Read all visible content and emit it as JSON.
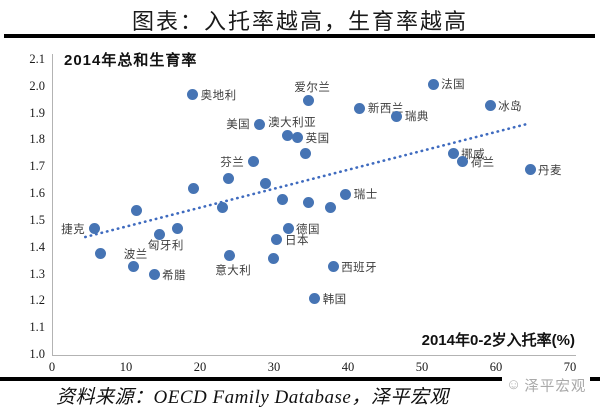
{
  "title": "图表：入托率越高，生育率越高",
  "footer": {
    "source": "资料来源：OECD Family Database，泽平宏观"
  },
  "watermark": {
    "icon": "smiley-logo-icon",
    "icon_char": "☺",
    "label": "泽平宏观"
  },
  "chart_data": {
    "type": "scatter",
    "title": "2014年总和生育率",
    "xlabel": "2014年0-2岁入托率(%)",
    "ylabel": "2014年总和生育率",
    "xlim": [
      0,
      70
    ],
    "ylim": [
      1.0,
      2.1
    ],
    "x_ticks": [
      0,
      10,
      20,
      30,
      40,
      50,
      60,
      70
    ],
    "y_ticks": [
      2.1,
      2.0,
      1.9,
      1.8,
      1.7,
      1.6,
      1.5,
      1.4,
      1.3,
      1.2,
      1.1,
      1.0
    ],
    "dot_color": "#4674b4",
    "trendline": {
      "style": "dotted",
      "color": "#3f6bbf",
      "x1": 4.5,
      "y1": 1.44,
      "x2": 64.0,
      "y2": 1.86
    },
    "points": [
      {
        "label": "捷克",
        "x": 5.7,
        "y": 1.47,
        "side": "left"
      },
      {
        "label": "",
        "x": 6.5,
        "y": 1.38,
        "side": "none"
      },
      {
        "label": "波兰",
        "x": 11.0,
        "y": 1.33,
        "side": "above"
      },
      {
        "label": "",
        "x": 11.4,
        "y": 1.54,
        "side": "none"
      },
      {
        "label": "希腊",
        "x": 13.8,
        "y": 1.3,
        "side": "right"
      },
      {
        "label": "匈牙利",
        "x": 14.5,
        "y": 1.45,
        "side": "below-right"
      },
      {
        "label": "",
        "x": 16.9,
        "y": 1.47,
        "side": "none"
      },
      {
        "label": "",
        "x": 19.1,
        "y": 1.62,
        "side": "none"
      },
      {
        "label": "奥地利",
        "x": 19.0,
        "y": 1.97,
        "side": "right"
      },
      {
        "label": "",
        "x": 23.1,
        "y": 1.55,
        "side": "none"
      },
      {
        "label": "",
        "x": 23.9,
        "y": 1.66,
        "side": "none"
      },
      {
        "label": "意大利",
        "x": 24.0,
        "y": 1.37,
        "side": "below"
      },
      {
        "label": "芬兰",
        "x": 27.2,
        "y": 1.72,
        "side": "left"
      },
      {
        "label": "美国",
        "x": 28.0,
        "y": 1.86,
        "side": "left"
      },
      {
        "label": "",
        "x": 28.8,
        "y": 1.64,
        "side": "none"
      },
      {
        "label": "",
        "x": 29.9,
        "y": 1.36,
        "side": "none"
      },
      {
        "label": "日本",
        "x": 30.4,
        "y": 1.43,
        "side": "right"
      },
      {
        "label": "德国",
        "x": 31.9,
        "y": 1.47,
        "side": "right"
      },
      {
        "label": "",
        "x": 31.2,
        "y": 1.58,
        "side": "none"
      },
      {
        "label": "澳大利亚",
        "x": 31.8,
        "y": 1.82,
        "side": "above"
      },
      {
        "label": "英国",
        "x": 33.2,
        "y": 1.81,
        "side": "right"
      },
      {
        "label": "",
        "x": 34.3,
        "y": 1.75,
        "side": "none"
      },
      {
        "label": "爱尔兰",
        "x": 34.7,
        "y": 1.95,
        "side": "above"
      },
      {
        "label": "",
        "x": 34.6,
        "y": 1.57,
        "side": "none"
      },
      {
        "label": "韩国",
        "x": 35.5,
        "y": 1.21,
        "side": "right"
      },
      {
        "label": "",
        "x": 37.6,
        "y": 1.55,
        "side": "none"
      },
      {
        "label": "西班牙",
        "x": 38.0,
        "y": 1.33,
        "side": "right"
      },
      {
        "label": "瑞士",
        "x": 39.7,
        "y": 1.6,
        "side": "right"
      },
      {
        "label": "新西兰",
        "x": 41.6,
        "y": 1.92,
        "side": "right"
      },
      {
        "label": "瑞典",
        "x": 46.6,
        "y": 1.89,
        "side": "right"
      },
      {
        "label": "法国",
        "x": 51.5,
        "y": 2.01,
        "side": "right"
      },
      {
        "label": "挪威",
        "x": 54.2,
        "y": 1.75,
        "side": "right"
      },
      {
        "label": "荷兰",
        "x": 55.5,
        "y": 1.72,
        "side": "right"
      },
      {
        "label": "冰岛",
        "x": 59.2,
        "y": 1.93,
        "side": "right"
      },
      {
        "label": "丹麦",
        "x": 64.6,
        "y": 1.69,
        "side": "right"
      }
    ]
  }
}
